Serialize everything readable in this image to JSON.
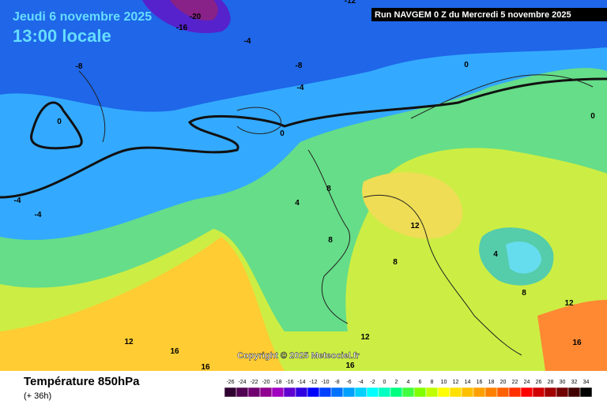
{
  "header": {
    "date": "Jeudi 6 novembre 2025",
    "time": "13:00 locale",
    "run": "Run NAVGEM 0 Z du Mercredi 5 novembre 2025"
  },
  "map": {
    "copyright": "Copyright © 2025 Meteociel.fr",
    "contour_labels": [
      -20,
      -16,
      -12,
      -4,
      -8,
      -8,
      -4,
      0,
      0,
      0,
      0,
      -4,
      -4,
      4,
      8,
      8,
      8,
      12,
      4,
      8,
      12,
      12,
      16,
      12,
      16,
      16,
      16
    ]
  },
  "legend": {
    "title": "Température 850hPa",
    "lead": "(+ 36h)",
    "ticks": [
      -26,
      -24,
      -22,
      -20,
      -18,
      -16,
      -14,
      -12,
      -10,
      -8,
      -6,
      -4,
      -2,
      0,
      2,
      4,
      6,
      8,
      10,
      12,
      14,
      16,
      18,
      20,
      22,
      24,
      26,
      28,
      30,
      32,
      34
    ],
    "colors": [
      "#300030",
      "#500050",
      "#700070",
      "#900090",
      "#a000c0",
      "#6000d0",
      "#3000e0",
      "#0000ff",
      "#0040ff",
      "#0070ff",
      "#00a0ff",
      "#00d0ff",
      "#00ffff",
      "#00ffc0",
      "#00ff80",
      "#40ff40",
      "#80ff00",
      "#c0ff00",
      "#ffff00",
      "#ffe000",
      "#ffc000",
      "#ffa000",
      "#ff8000",
      "#ff6000",
      "#ff3000",
      "#ff0000",
      "#d00000",
      "#a00000",
      "#700000",
      "#400000",
      "#000000"
    ]
  }
}
